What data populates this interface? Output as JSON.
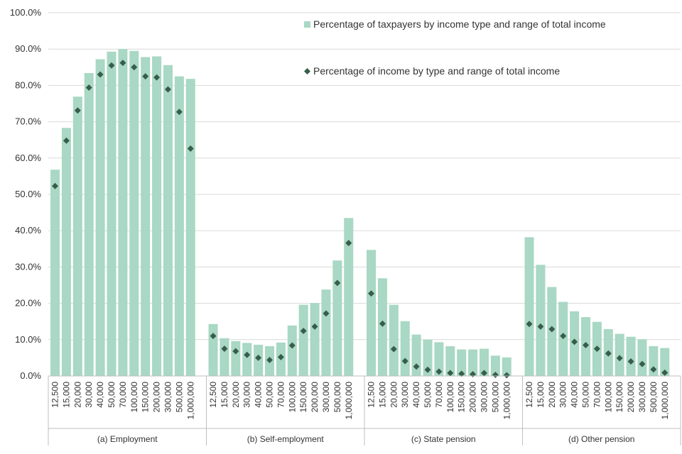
{
  "chart_data": {
    "type": "bar",
    "title": "",
    "xlabel": "",
    "ylabel": "",
    "ylim": [
      0,
      100
    ],
    "y_ticks": [
      "0.0%",
      "10.0%",
      "20.0%",
      "30.0%",
      "40.0%",
      "50.0%",
      "60.0%",
      "70.0%",
      "80.0%",
      "90.0%",
      "100.0%"
    ],
    "grid": true,
    "legend_position": "top-right",
    "categories": [
      "12,500",
      "15,000",
      "20,000",
      "30,000",
      "40,000",
      "50,000",
      "70,000",
      "100,000",
      "150,000",
      "200,000",
      "300,000",
      "500,000",
      "1,000,000"
    ],
    "groups": [
      {
        "name": "(a) Employment",
        "taxpayers": [
          56.8,
          68.3,
          76.9,
          83.4,
          87.2,
          89.3,
          90.0,
          89.5,
          87.8,
          88.0,
          85.6,
          82.5,
          81.8
        ],
        "income": [
          52.3,
          64.8,
          73.1,
          79.4,
          83.0,
          85.5,
          86.2,
          85.0,
          82.5,
          82.2,
          78.9,
          72.7,
          62.6
        ]
      },
      {
        "name": "(b) Self-employment",
        "taxpayers": [
          14.3,
          10.4,
          9.6,
          9.1,
          8.6,
          8.2,
          9.2,
          13.9,
          19.6,
          20.1,
          23.8,
          31.8,
          43.5
        ],
        "income": [
          11.0,
          7.5,
          6.8,
          5.8,
          5.0,
          4.4,
          5.2,
          8.4,
          12.4,
          13.6,
          17.2,
          25.6,
          36.6
        ]
      },
      {
        "name": "(c) State pension",
        "taxpayers": [
          34.7,
          26.9,
          19.6,
          15.1,
          11.4,
          10.0,
          9.3,
          8.2,
          7.3,
          7.3,
          7.5,
          5.6,
          5.1
        ],
        "income": [
          22.7,
          14.4,
          7.4,
          4.1,
          2.6,
          1.7,
          1.2,
          0.8,
          0.6,
          0.5,
          0.8,
          0.3,
          0.2
        ]
      },
      {
        "name": "(d) Other pension",
        "taxpayers": [
          38.2,
          30.6,
          24.5,
          20.4,
          17.8,
          16.2,
          14.9,
          12.9,
          11.6,
          10.8,
          10.1,
          8.2,
          7.7
        ],
        "income": [
          14.3,
          13.6,
          12.9,
          11.0,
          9.4,
          8.5,
          7.5,
          6.2,
          4.9,
          4.0,
          3.3,
          1.8,
          0.9
        ]
      }
    ],
    "series": [
      {
        "name": "Percentage of taxpayers by income type and range of total income",
        "kind": "bar",
        "color": "#a9d8c4"
      },
      {
        "name": "Percentage of income by type and range of total income",
        "kind": "diamond",
        "color": "#365e4a"
      }
    ]
  }
}
